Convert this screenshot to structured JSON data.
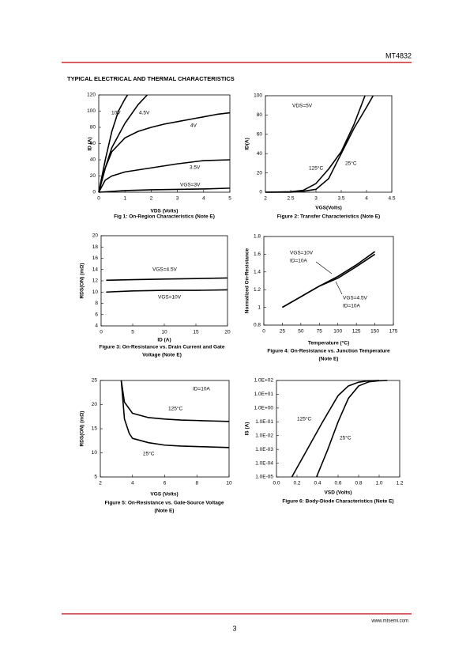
{
  "header": {
    "part_number": "MT4832"
  },
  "section_title": "TYPICAL ELECTRICAL AND THERMAL CHARACTERISTICS",
  "chart_data": [
    {
      "type": "line",
      "caption": [
        "Fig 1: On-Region Characteristics (Note E)"
      ],
      "xlabel": "VDS (Volts)",
      "ylabel": "ID (A)",
      "xlim": [
        0,
        5
      ],
      "xticks": [
        0,
        1,
        2,
        3,
        4,
        5
      ],
      "ylim": [
        0,
        120
      ],
      "yticks": [
        0,
        20,
        40,
        60,
        80,
        100,
        120
      ],
      "annotations": [
        "10V",
        "4.5V",
        "4V",
        "3.5V",
        "VGS=3V"
      ],
      "series": [
        {
          "name": "10V",
          "color": "#000000",
          "x": [
            0,
            0.25,
            0.5,
            0.75,
            1.0,
            1.1
          ],
          "values": [
            0,
            40,
            75,
            100,
            115,
            120
          ]
        },
        {
          "name": "4.5V",
          "color": "#000000",
          "x": [
            0,
            0.25,
            0.5,
            1,
            1.5,
            1.85
          ],
          "values": [
            0,
            30,
            55,
            85,
            108,
            120
          ]
        },
        {
          "name": "4V",
          "color": "#000000",
          "x": [
            0,
            0.25,
            0.5,
            1,
            1.5,
            2,
            2.5,
            3,
            3.5,
            4,
            4.5,
            5
          ],
          "values": [
            0,
            30,
            50,
            67,
            75,
            80,
            84,
            87,
            90,
            93,
            96,
            98
          ]
        },
        {
          "name": "3.5V",
          "color": "#000000",
          "x": [
            0,
            0.25,
            0.5,
            1,
            2,
            3,
            4,
            5
          ],
          "values": [
            0,
            15,
            20,
            25,
            30,
            35,
            39,
            40
          ]
        },
        {
          "name": "VGS=3V",
          "color": "#000000",
          "x": [
            0,
            1,
            2,
            3,
            4,
            5
          ],
          "values": [
            0,
            2,
            3,
            3.5,
            4,
            5
          ]
        }
      ]
    },
    {
      "type": "line",
      "caption": [
        "Figure 2: Transfer Characteristics (Note E)"
      ],
      "xlabel": "VGS(Volts)",
      "ylabel": "ID(A)",
      "xlim": [
        2,
        4.5
      ],
      "xticks": [
        2,
        2.5,
        3,
        3.5,
        4,
        4.5
      ],
      "ylim": [
        0,
        100
      ],
      "yticks": [
        0,
        20,
        40,
        60,
        80,
        100
      ],
      "annotations": [
        "VDS=5V",
        "125°C",
        "25°C"
      ],
      "series": [
        {
          "name": "125°C",
          "color": "#000000",
          "x": [
            2,
            2.5,
            2.75,
            3,
            3.25,
            3.5,
            3.75,
            3.97
          ],
          "values": [
            0,
            0.5,
            2,
            9,
            24,
            42,
            70,
            100
          ]
        },
        {
          "name": "25°C",
          "color": "#000000",
          "x": [
            2,
            2.5,
            2.75,
            3,
            3.25,
            3.5,
            3.75,
            4,
            4.13
          ],
          "values": [
            0,
            0,
            1,
            3,
            14,
            40,
            66,
            88,
            100
          ]
        }
      ]
    },
    {
      "type": "line",
      "caption": [
        "Figure 3: On-Resistance vs. Drain Current and Gate",
        "Voltage (Note E)"
      ],
      "xlabel": "ID (A)",
      "ylabel": "RDS(ON) (mΩ)",
      "xlim": [
        0,
        20
      ],
      "xticks": [
        0,
        5,
        10,
        15,
        20
      ],
      "ylim": [
        4,
        20
      ],
      "yticks": [
        4,
        6,
        8,
        10,
        12,
        14,
        16,
        18,
        20
      ],
      "annotations": [
        "VGS=4.5V",
        "VGS=10V"
      ],
      "series": [
        {
          "name": "VGS=4.5V",
          "color": "#000000",
          "x": [
            0.8,
            5,
            10,
            15,
            20
          ],
          "values": [
            12.1,
            12.2,
            12.3,
            12.4,
            12.5
          ]
        },
        {
          "name": "VGS=10V",
          "color": "#000000",
          "x": [
            0.8,
            5,
            10,
            15,
            20
          ],
          "values": [
            10.0,
            10.2,
            10.3,
            10.3,
            10.4
          ]
        }
      ]
    },
    {
      "type": "line",
      "caption": [
        "Figure 4: On-Resistance vs. Junction Temperature",
        "(Note E)"
      ],
      "xlabel": "Temperature (°C)",
      "ylabel": "Normalized On-Resistance",
      "xlim": [
        0,
        175
      ],
      "xticks": [
        0,
        25,
        50,
        75,
        100,
        125,
        150,
        175
      ],
      "ylim": [
        0.8,
        1.8
      ],
      "yticks": [
        0.8,
        1,
        1.2,
        1.4,
        1.6,
        1.8
      ],
      "annotations": [
        "VGS=10V",
        "ID=10A",
        "VGS=4.5V",
        "ID=10A"
      ],
      "series": [
        {
          "name": "VGS=10V",
          "color": "#000000",
          "x": [
            25,
            50,
            75,
            100,
            125,
            150
          ],
          "values": [
            1,
            1.12,
            1.24,
            1.35,
            1.48,
            1.63
          ]
        },
        {
          "name": "VGS=4.5V",
          "color": "#000000",
          "x": [
            25,
            50,
            75,
            100,
            125,
            150
          ],
          "values": [
            1,
            1.12,
            1.24,
            1.33,
            1.46,
            1.6
          ]
        }
      ]
    },
    {
      "type": "line",
      "caption": [
        "Figure 5: On-Resistance vs. Gate-Source Voltage",
        "(Note E)"
      ],
      "xlabel": "VGS (Volts)",
      "ylabel": "RDS(ON) (mΩ)",
      "xlim": [
        2,
        10
      ],
      "xticks": [
        2,
        4,
        6,
        8,
        10
      ],
      "ylim": [
        5,
        25
      ],
      "yticks": [
        5,
        10,
        15,
        20,
        25
      ],
      "annotations": [
        "ID=10A",
        "125°C",
        "25°C"
      ],
      "series": [
        {
          "name": "125°C",
          "color": "#000000",
          "x": [
            3.3,
            3.5,
            4,
            5,
            6,
            7,
            8,
            9,
            10
          ],
          "values": [
            25,
            20.5,
            18.2,
            17.3,
            17.0,
            16.8,
            16.7,
            16.6,
            16.5
          ]
        },
        {
          "name": "25°C",
          "color": "#000000",
          "x": [
            3.3,
            3.5,
            3.8,
            4,
            5,
            6,
            7,
            8,
            9,
            10
          ],
          "values": [
            25,
            17,
            14,
            13,
            12.1,
            11.6,
            11.4,
            11.3,
            11.2,
            11.1
          ]
        }
      ]
    },
    {
      "type": "line",
      "caption": [
        "Figure 6: Body-Diode Characteristics (Note E)"
      ],
      "xlabel": "VSD (Volts)",
      "ylabel": "IS (A)",
      "ylog": true,
      "xlim": [
        0,
        1.2
      ],
      "xticks": [
        {
          "value": 0,
          "label": "0.0"
        },
        0.2,
        0.4,
        0.6,
        0.8,
        {
          "value": 1,
          "label": "1.0"
        },
        1.2
      ],
      "ylim": [
        1e-05,
        100
      ],
      "yticks": [
        {
          "value": 1e-05,
          "label": "1.0E-05"
        },
        {
          "value": 0.0001,
          "label": "1.0E-04"
        },
        {
          "value": 0.001,
          "label": "1.0E-03"
        },
        {
          "value": 0.01,
          "label": "1.0E-02"
        },
        {
          "value": 0.1,
          "label": "1.0E-01"
        },
        {
          "value": 1,
          "label": "1.0E+00"
        },
        {
          "value": 10,
          "label": "1.0E+01"
        },
        {
          "value": 100,
          "label": "1.0E+02"
        }
      ],
      "annotations": [
        "125°C",
        "25°C"
      ],
      "series": [
        {
          "name": "125°C",
          "color": "#000000",
          "x": [
            0.15,
            0.3,
            0.45,
            0.6,
            0.7,
            0.8,
            0.9,
            1.0
          ],
          "values": [
            1e-05,
            0.001,
            0.1,
            8,
            40,
            75,
            95,
            100
          ]
        },
        {
          "name": "25°C",
          "color": "#000000",
          "x": [
            0.39,
            0.5,
            0.6,
            0.7,
            0.8,
            0.9,
            1.0,
            1.08
          ],
          "values": [
            1e-05,
            0.001,
            0.1,
            5,
            40,
            80,
            95,
            100
          ]
        }
      ]
    }
  ],
  "footer": {
    "page_number": "3",
    "website": "www.mtsemi.com"
  }
}
